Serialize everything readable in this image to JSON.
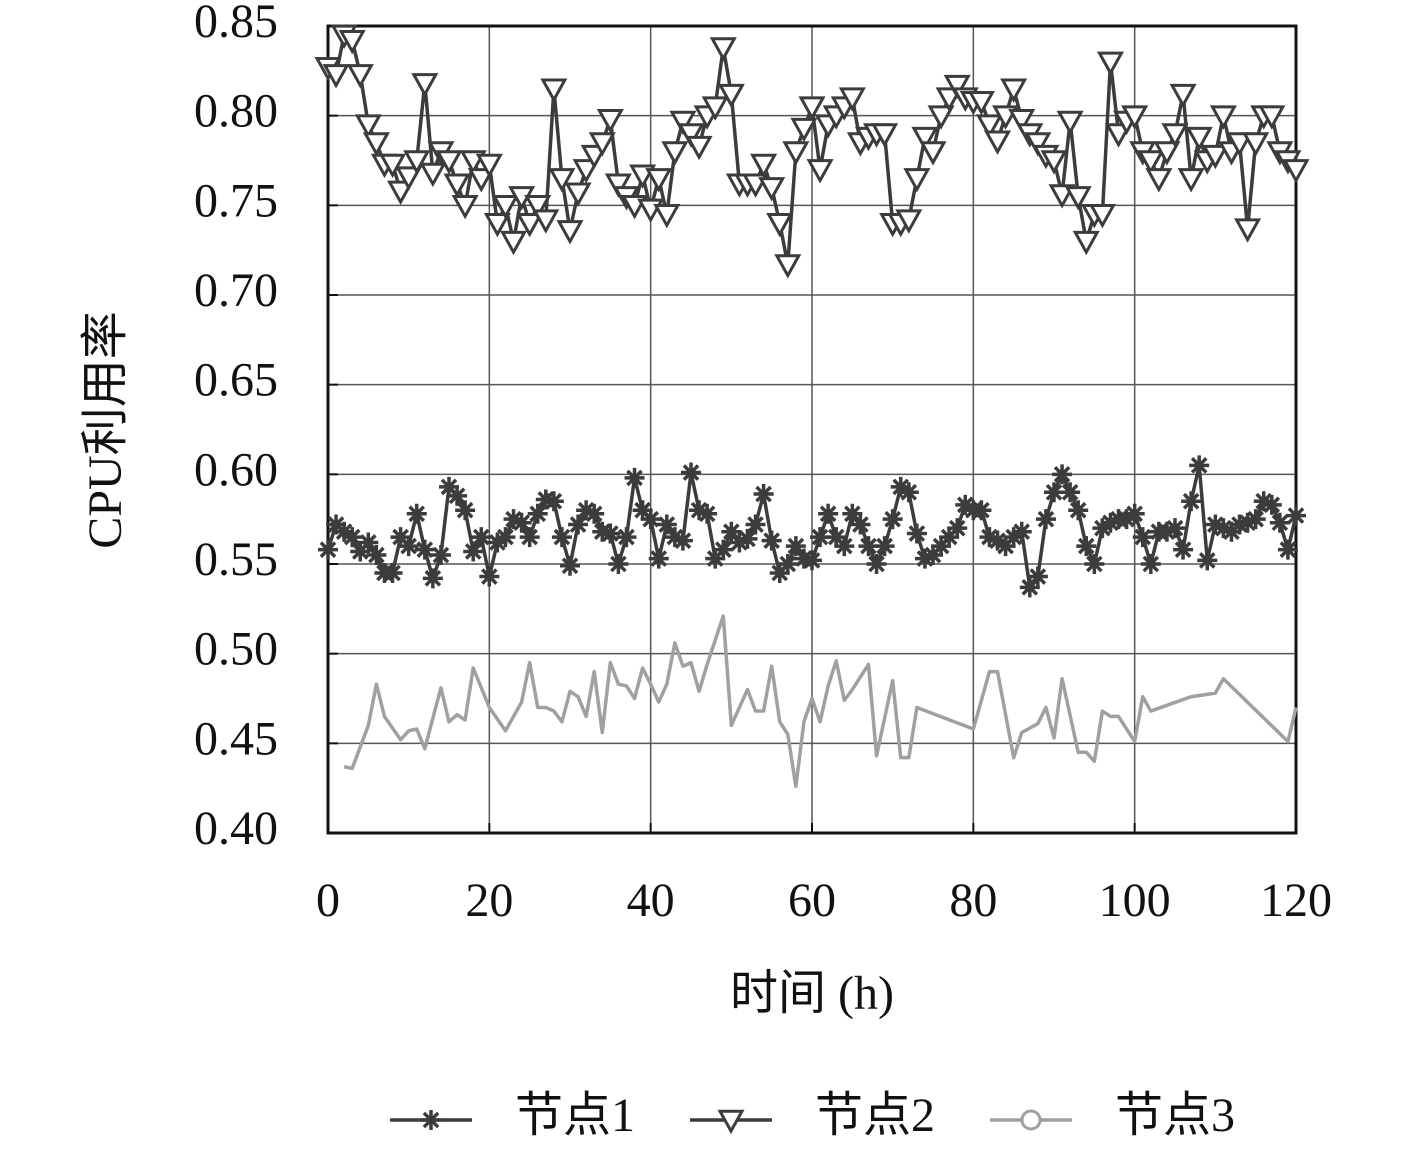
{
  "chart_data": {
    "type": "line",
    "ylabel": "CPU利用率",
    "xlabel": "时间 (h)",
    "xlim": [
      0,
      120
    ],
    "xticks": [
      0,
      20,
      40,
      60,
      80,
      100,
      120
    ],
    "ylim": [
      0.4,
      0.85
    ],
    "yticks": [
      {
        "value": 0.4,
        "label": "0.40"
      },
      0.45,
      {
        "value": 0.5,
        "label": "0.50"
      },
      0.55,
      {
        "value": 0.6,
        "label": "0.60"
      },
      0.65,
      {
        "value": 0.7,
        "label": "0.70"
      },
      0.75,
      {
        "value": 0.8,
        "label": "0.80"
      },
      0.85
    ],
    "grid": true,
    "legend": "bottom",
    "x": [
      0,
      1,
      2,
      3,
      4,
      5,
      6,
      7,
      8,
      9,
      10,
      11,
      12,
      13,
      14,
      15,
      16,
      17,
      18,
      19,
      20,
      21,
      22,
      23,
      24,
      25,
      26,
      27,
      28,
      29,
      30,
      31,
      32,
      33,
      34,
      35,
      36,
      37,
      38,
      39,
      40,
      41,
      42,
      43,
      44,
      45,
      46,
      47,
      48,
      49,
      50,
      51,
      52,
      53,
      54,
      55,
      56,
      57,
      58,
      59,
      60,
      61,
      62,
      63,
      64,
      65,
      66,
      67,
      68,
      69,
      70,
      71,
      72,
      73,
      74,
      75,
      76,
      77,
      78,
      79,
      80,
      81,
      82,
      83,
      84,
      85,
      86,
      87,
      88,
      89,
      90,
      91,
      92,
      93,
      94,
      95,
      96,
      97,
      98,
      99,
      100,
      101,
      102,
      103,
      104,
      105,
      106,
      107,
      108,
      109,
      110,
      111,
      112,
      113,
      114,
      115,
      116,
      117,
      118,
      119,
      120
    ],
    "series": [
      {
        "name": "节点1",
        "color": "#3c3c3c",
        "marker": "asterisk",
        "show_markers": true,
        "values": [
          0.558,
          0.572,
          0.568,
          0.565,
          0.557,
          0.562,
          0.555,
          0.545,
          0.545,
          0.565,
          0.56,
          0.578,
          0.558,
          0.542,
          0.555,
          0.593,
          0.588,
          0.58,
          0.557,
          0.565,
          0.543,
          0.562,
          0.565,
          0.575,
          0.573,
          0.565,
          0.578,
          0.586,
          0.585,
          0.565,
          0.549,
          0.572,
          0.58,
          0.578,
          0.568,
          0.567,
          0.55,
          0.565,
          0.598,
          0.58,
          0.575,
          0.553,
          0.572,
          0.565,
          0.563,
          0.601,
          0.58,
          0.578,
          0.553,
          0.558,
          0.568,
          0.562,
          0.564,
          0.572,
          0.589,
          0.563,
          0.545,
          0.55,
          0.56,
          0.553,
          0.552,
          0.565,
          0.578,
          0.565,
          0.56,
          0.578,
          0.572,
          0.56,
          0.55,
          0.56,
          0.575,
          0.593,
          0.59,
          0.567,
          0.553,
          0.555,
          0.56,
          0.565,
          0.57,
          0.583,
          0.58,
          0.58,
          0.565,
          0.563,
          0.56,
          0.565,
          0.568,
          0.537,
          0.543,
          0.575,
          0.59,
          0.6,
          0.59,
          0.58,
          0.56,
          0.55,
          0.57,
          0.573,
          0.575,
          0.575,
          0.578,
          0.565,
          0.55,
          0.568,
          0.568,
          0.57,
          0.558,
          0.585,
          0.605,
          0.552,
          0.572,
          0.57,
          0.568,
          0.572,
          0.573,
          0.575,
          0.585,
          0.583,
          0.573,
          0.558,
          0.577
        ]
      },
      {
        "name": "节点2",
        "color": "#3c3c3c",
        "marker": "triangle-down",
        "show_markers": true,
        "values": [
          0.827,
          0.823,
          0.845,
          0.842,
          0.823,
          0.795,
          0.785,
          0.773,
          0.773,
          0.758,
          0.766,
          0.775,
          0.818,
          0.768,
          0.78,
          0.775,
          0.762,
          0.75,
          0.775,
          0.765,
          0.773,
          0.74,
          0.75,
          0.73,
          0.755,
          0.74,
          0.75,
          0.742,
          0.815,
          0.765,
          0.736,
          0.757,
          0.77,
          0.778,
          0.785,
          0.798,
          0.762,
          0.755,
          0.75,
          0.767,
          0.748,
          0.765,
          0.745,
          0.78,
          0.797,
          0.79,
          0.783,
          0.8,
          0.805,
          0.838,
          0.812,
          0.762,
          0.762,
          0.762,
          0.773,
          0.76,
          0.74,
          0.717,
          0.78,
          0.793,
          0.805,
          0.77,
          0.795,
          0.8,
          0.805,
          0.81,
          0.785,
          0.788,
          0.79,
          0.79,
          0.74,
          0.74,
          0.742,
          0.765,
          0.788,
          0.78,
          0.8,
          0.81,
          0.817,
          0.81,
          0.808,
          0.808,
          0.795,
          0.786,
          0.8,
          0.815,
          0.798,
          0.79,
          0.785,
          0.778,
          0.775,
          0.756,
          0.797,
          0.755,
          0.73,
          0.745,
          0.745,
          0.83,
          0.79,
          0.797,
          0.8,
          0.78,
          0.775,
          0.765,
          0.78,
          0.79,
          0.812,
          0.765,
          0.788,
          0.775,
          0.778,
          0.8,
          0.78,
          0.785,
          0.737,
          0.785,
          0.8,
          0.8,
          0.78,
          0.775,
          0.77
        ]
      },
      {
        "name": "节点3",
        "color": "#a0a0a0",
        "marker": "circle",
        "show_markers": false,
        "x": [
          2,
          3,
          5,
          6,
          7,
          9,
          10,
          11,
          12,
          13,
          14,
          15,
          16,
          17,
          18,
          20,
          22,
          24,
          25,
          26,
          27,
          28,
          29,
          30,
          31,
          32,
          33,
          34,
          35,
          36,
          37,
          38,
          39,
          40,
          41,
          42,
          43,
          44,
          45,
          46,
          47,
          49,
          50,
          51,
          52,
          53,
          54,
          55,
          56,
          57,
          58,
          59,
          60,
          61,
          62,
          63,
          64,
          65,
          67,
          68,
          70,
          71,
          72,
          73,
          80,
          82,
          83,
          85,
          86,
          88,
          89,
          90,
          91,
          93,
          94,
          95,
          96,
          97,
          98,
          100,
          101,
          102,
          107,
          110,
          111,
          119,
          120
        ],
        "values": [
          0.437,
          0.436,
          0.46,
          0.483,
          0.465,
          0.452,
          0.457,
          0.458,
          0.447,
          0.464,
          0.481,
          0.462,
          0.466,
          0.463,
          0.492,
          0.47,
          0.457,
          0.473,
          0.495,
          0.47,
          0.47,
          0.468,
          0.462,
          0.479,
          0.476,
          0.465,
          0.49,
          0.456,
          0.495,
          0.483,
          0.482,
          0.475,
          0.492,
          0.483,
          0.473,
          0.483,
          0.506,
          0.493,
          0.495,
          0.479,
          0.494,
          0.521,
          0.46,
          0.47,
          0.48,
          0.468,
          0.468,
          0.493,
          0.462,
          0.455,
          0.426,
          0.462,
          0.475,
          0.462,
          0.482,
          0.496,
          0.474,
          0.48,
          0.494,
          0.443,
          0.485,
          0.442,
          0.442,
          0.47,
          0.458,
          0.49,
          0.49,
          0.442,
          0.456,
          0.461,
          0.47,
          0.453,
          0.486,
          0.445,
          0.445,
          0.44,
          0.468,
          0.465,
          0.465,
          0.451,
          0.476,
          0.468,
          0.476,
          0.478,
          0.486,
          0.451,
          0.47
        ]
      }
    ]
  }
}
